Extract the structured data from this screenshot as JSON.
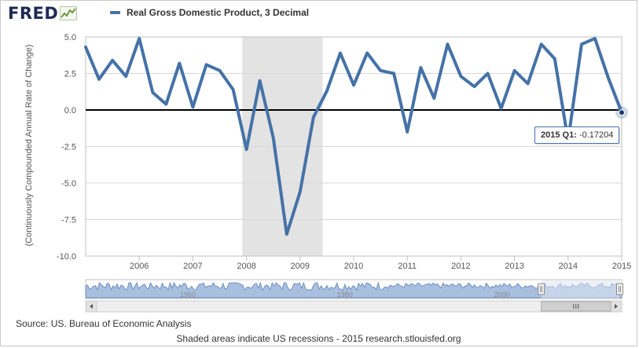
{
  "logo": {
    "text": "FRED",
    "icon": "fred-graph-icon"
  },
  "tooltip": {
    "label": "2015 Q1:",
    "value": "-0.17204"
  },
  "source_text": "Source: US. Bureau of Economic Analysis",
  "footer_text": "Shaded areas indicate US recessions - 2015 research.stlouisfed.org",
  "colors": {
    "series": "#4572a7",
    "recession": "#e3e3e3",
    "zero_line": "#000000",
    "navigator_fill": "#a8bfe0",
    "navigator_mask": "#dfe6f1"
  },
  "navigator": {
    "year_labels": [
      "1960",
      "1980",
      "2000"
    ],
    "year_positions": [
      1960,
      1980,
      2000
    ],
    "range": [
      1947,
      2015.25
    ],
    "selected": [
      2005.0,
      2015.0
    ]
  },
  "chart_data": {
    "type": "line",
    "title": "",
    "legend": "Real Gross Domestic Product, 3 Decimal",
    "ylabel": "(Continuously Compounded Annual Rate of Change)",
    "xlabel": "",
    "xlim": [
      2005.0,
      2015.0
    ],
    "ylim": [
      -10.0,
      5.0
    ],
    "yticks": [
      5.0,
      2.5,
      0.0,
      -2.5,
      -5.0,
      -7.5,
      -10.0
    ],
    "ytick_labels": [
      "5.0",
      "2.5",
      "0.0",
      "-2.5",
      "-5.0",
      "-7.5",
      "-10.0"
    ],
    "xticks": [
      2006,
      2007,
      2008,
      2009,
      2010,
      2011,
      2012,
      2013,
      2014,
      2015
    ],
    "xtick_labels": [
      "2006",
      "2007",
      "2008",
      "2009",
      "2010",
      "2011",
      "2012",
      "2013",
      "2014",
      "2015"
    ],
    "recessions": [
      [
        2007.92,
        2009.42
      ]
    ],
    "zero_line": 0.0,
    "highlight_point": {
      "x": 2015.0,
      "y": -0.17204
    },
    "series": [
      {
        "name": "Real Gross Domestic Product, 3 Decimal",
        "x": [
          2005.0,
          2005.25,
          2005.5,
          2005.75,
          2006.0,
          2006.25,
          2006.5,
          2006.75,
          2007.0,
          2007.25,
          2007.5,
          2007.75,
          2008.0,
          2008.25,
          2008.5,
          2008.75,
          2009.0,
          2009.25,
          2009.5,
          2009.75,
          2010.0,
          2010.25,
          2010.5,
          2010.75,
          2011.0,
          2011.25,
          2011.5,
          2011.75,
          2012.0,
          2012.25,
          2012.5,
          2012.75,
          2013.0,
          2013.25,
          2013.5,
          2013.75,
          2014.0,
          2014.25,
          2014.5,
          2014.75,
          2015.0
        ],
        "values": [
          4.3,
          2.1,
          3.4,
          2.3,
          4.9,
          1.2,
          0.4,
          3.2,
          0.2,
          3.1,
          2.7,
          1.4,
          -2.7,
          2.0,
          -1.9,
          -8.5,
          -5.6,
          -0.5,
          1.3,
          3.9,
          1.7,
          3.9,
          2.7,
          2.5,
          -1.5,
          2.9,
          0.8,
          4.5,
          2.3,
          1.6,
          2.5,
          0.1,
          2.7,
          1.8,
          4.5,
          3.5,
          -2.1,
          4.5,
          4.9,
          2.2,
          -0.17204
        ]
      }
    ]
  }
}
